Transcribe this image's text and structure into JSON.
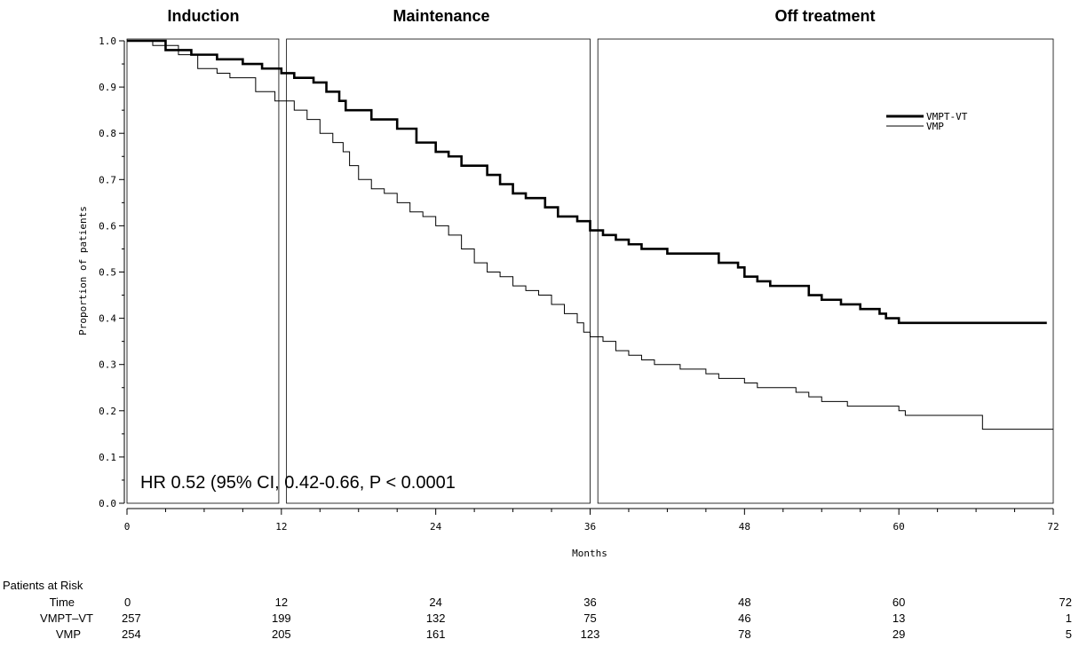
{
  "chart_data": {
    "type": "line",
    "title": "",
    "xlabel": "Months",
    "ylabel": "Proportion of patients",
    "xlim": [
      0,
      72
    ],
    "ylim": [
      0.0,
      1.0
    ],
    "x_ticks": [
      "0",
      "12",
      "24",
      "36",
      "48",
      "60",
      "72"
    ],
    "y_ticks": [
      "0.0",
      "0.1",
      "0.2",
      "0.3",
      "0.4",
      "0.5",
      "0.6",
      "0.7",
      "0.8",
      "0.9",
      "1.0"
    ],
    "phases": [
      {
        "label": "Induction",
        "start": 0,
        "end": 11.8
      },
      {
        "label": "Maintenance",
        "start": 12.4,
        "end": 36.0
      },
      {
        "label": "Off treatment",
        "start": 36.6,
        "end": 72.0
      }
    ],
    "annotation": "HR 0.52 (95% CI, 0.42-0.66, P < 0.0001",
    "legend_position": "top-right",
    "grid": false,
    "series": [
      {
        "name": "VMPT-VT",
        "style": "thick",
        "color": "#000000",
        "points": [
          [
            0,
            1.0
          ],
          [
            1.5,
            1.0
          ],
          [
            3,
            0.98
          ],
          [
            5,
            0.97
          ],
          [
            7,
            0.96
          ],
          [
            9,
            0.95
          ],
          [
            10.5,
            0.94
          ],
          [
            12,
            0.93
          ],
          [
            13,
            0.92
          ],
          [
            14.5,
            0.91
          ],
          [
            15.5,
            0.89
          ],
          [
            16.5,
            0.87
          ],
          [
            17,
            0.85
          ],
          [
            19,
            0.83
          ],
          [
            21,
            0.81
          ],
          [
            22.5,
            0.78
          ],
          [
            24,
            0.76
          ],
          [
            25,
            0.75
          ],
          [
            26,
            0.73
          ],
          [
            28,
            0.71
          ],
          [
            29,
            0.69
          ],
          [
            30,
            0.67
          ],
          [
            31,
            0.66
          ],
          [
            32.5,
            0.64
          ],
          [
            33.5,
            0.62
          ],
          [
            35,
            0.61
          ],
          [
            36,
            0.59
          ],
          [
            37,
            0.58
          ],
          [
            38,
            0.57
          ],
          [
            39,
            0.56
          ],
          [
            40,
            0.55
          ],
          [
            42,
            0.54
          ],
          [
            45,
            0.54
          ],
          [
            46,
            0.52
          ],
          [
            47.5,
            0.51
          ],
          [
            48,
            0.49
          ],
          [
            49,
            0.48
          ],
          [
            50,
            0.47
          ],
          [
            52.5,
            0.47
          ],
          [
            53,
            0.45
          ],
          [
            54,
            0.44
          ],
          [
            55.5,
            0.43
          ],
          [
            57,
            0.42
          ],
          [
            58.5,
            0.41
          ],
          [
            59,
            0.4
          ],
          [
            60,
            0.39
          ],
          [
            71.5,
            0.39
          ]
        ]
      },
      {
        "name": "VMP",
        "style": "thin",
        "color": "#000000",
        "points": [
          [
            0,
            1.0
          ],
          [
            2,
            0.99
          ],
          [
            4,
            0.97
          ],
          [
            5.5,
            0.94
          ],
          [
            7,
            0.93
          ],
          [
            8,
            0.92
          ],
          [
            10,
            0.89
          ],
          [
            11.5,
            0.87
          ],
          [
            13,
            0.85
          ],
          [
            14,
            0.83
          ],
          [
            15,
            0.8
          ],
          [
            16,
            0.78
          ],
          [
            16.8,
            0.76
          ],
          [
            17.3,
            0.73
          ],
          [
            18,
            0.7
          ],
          [
            19,
            0.68
          ],
          [
            20,
            0.67
          ],
          [
            21,
            0.65
          ],
          [
            22,
            0.63
          ],
          [
            23,
            0.62
          ],
          [
            24,
            0.6
          ],
          [
            25,
            0.58
          ],
          [
            26,
            0.55
          ],
          [
            27,
            0.52
          ],
          [
            28,
            0.5
          ],
          [
            29,
            0.49
          ],
          [
            30,
            0.47
          ],
          [
            31,
            0.46
          ],
          [
            32,
            0.45
          ],
          [
            33,
            0.43
          ],
          [
            34,
            0.41
          ],
          [
            35,
            0.39
          ],
          [
            35.5,
            0.37
          ],
          [
            36,
            0.36
          ],
          [
            37,
            0.35
          ],
          [
            38,
            0.33
          ],
          [
            39,
            0.32
          ],
          [
            40,
            0.31
          ],
          [
            41,
            0.3
          ],
          [
            43,
            0.29
          ],
          [
            45,
            0.28
          ],
          [
            46,
            0.27
          ],
          [
            48,
            0.26
          ],
          [
            49,
            0.25
          ],
          [
            51,
            0.25
          ],
          [
            52,
            0.24
          ],
          [
            53,
            0.23
          ],
          [
            54,
            0.22
          ],
          [
            56,
            0.21
          ],
          [
            60,
            0.2
          ],
          [
            60.5,
            0.19
          ],
          [
            66,
            0.19
          ],
          [
            66.5,
            0.16
          ],
          [
            72,
            0.16
          ]
        ]
      }
    ]
  },
  "risk_table": {
    "header": "Patients at Risk",
    "time_label": "Time",
    "times": [
      "0",
      "12",
      "24",
      "36",
      "48",
      "60",
      "72"
    ],
    "rows": [
      {
        "label": "VMPT–VT",
        "values": [
          "257",
          "199",
          "132",
          "75",
          "46",
          "13",
          "1"
        ]
      },
      {
        "label": "VMP",
        "values": [
          "254",
          "205",
          "161",
          "123",
          "78",
          "29",
          "5"
        ]
      }
    ]
  }
}
